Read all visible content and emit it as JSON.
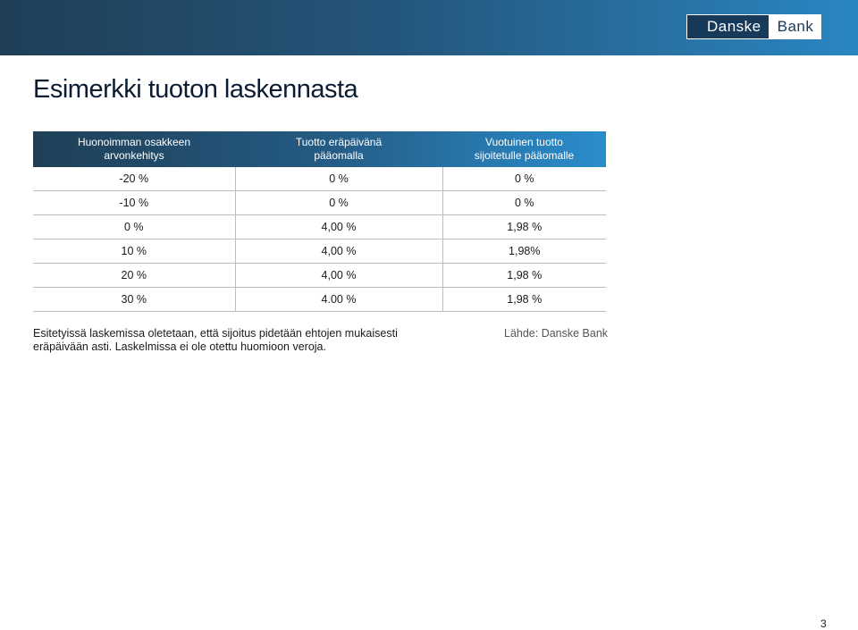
{
  "header": {
    "logo_left": "Danske",
    "logo_right": "Bank"
  },
  "title": "Esimerkki tuoton laskennasta",
  "table": {
    "headers": [
      [
        "Huonoimman osakkeen",
        "arvonkehitys"
      ],
      [
        "Tuotto eräpäivänä",
        "pääomalla"
      ],
      [
        "Vuotuinen tuotto",
        "sijoitetulle pääomalle"
      ]
    ],
    "rows": [
      [
        "-20 %",
        "0 %",
        "0 %"
      ],
      [
        "-10 %",
        "0 %",
        "0 %"
      ],
      [
        "0 %",
        "4,00 %",
        "1,98 %"
      ],
      [
        "10 %",
        "4,00 %",
        "1,98%"
      ],
      [
        "20 %",
        "4,00 %",
        "1,98 %"
      ],
      [
        "30 %",
        "4.00 %",
        "1,98 %"
      ]
    ]
  },
  "footnote": {
    "line1": "Esitetyissä laskemissa oletetaan, että sijoitus pidetään ehtojen mukaisesti",
    "line2": "eräpäivään asti. Laskelmissa ei ole otettu huomioon veroja."
  },
  "source": "Lähde: Danske Bank",
  "page_number": "3",
  "colors": {
    "header_dark": "#1f3f57",
    "header_light": "#2a86c2",
    "logo_navy": "#173a5a"
  }
}
